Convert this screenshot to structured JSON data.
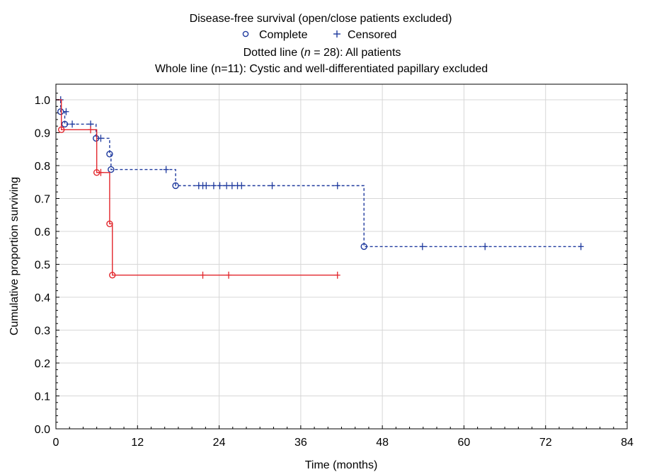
{
  "chart_data": {
    "type": "line",
    "title": "Disease-free  survival (open/close patients excluded)",
    "legend": {
      "placement": "top",
      "complete_label": "Complete",
      "censored_label": "Censored",
      "complete_marker": "circle",
      "censored_marker": "plus",
      "marker_color": "#1f3a9e"
    },
    "subtitle_pre": "Dotted line (",
    "subtitle_n": "n",
    "subtitle_post": " = 28): All patients",
    "subtitle2": "Whole line (n=11): Cystic and well-differentiated papillary excluded",
    "xlabel": "Time (months)",
    "ylabel": "Cumulative proportion surviving",
    "xlim": [
      0,
      84
    ],
    "ylim": [
      0,
      1.05
    ],
    "xticks": [
      0,
      12,
      24,
      36,
      48,
      60,
      72,
      84
    ],
    "yticks": [
      0.0,
      0.1,
      0.2,
      0.3,
      0.4,
      0.5,
      0.6,
      0.7,
      0.8,
      0.9,
      1.0
    ],
    "ytick_labels": [
      "0.0",
      "0.1",
      "0.2",
      "0.3",
      "0.4",
      "0.5",
      "0.6",
      "0.7",
      "0.8",
      "0.9",
      "1.0"
    ],
    "grid": true,
    "series": [
      {
        "style": "dotted",
        "color": "#1f3a9e",
        "steps": [
          [
            0,
            1.0
          ],
          [
            0.7,
            0.964
          ],
          [
            1.3,
            0.926
          ],
          [
            5.9,
            0.883
          ],
          [
            7.9,
            0.835
          ],
          [
            8.1,
            0.788
          ],
          [
            17.6,
            0.739
          ],
          [
            45.3,
            0.554
          ],
          [
            77.2,
            0.554
          ]
        ],
        "complete": [
          [
            0.7,
            0.964
          ],
          [
            1.3,
            0.926
          ],
          [
            5.9,
            0.883
          ],
          [
            7.9,
            0.835
          ],
          [
            8.1,
            0.788
          ],
          [
            17.6,
            0.739
          ],
          [
            45.3,
            0.554
          ]
        ],
        "censored": [
          [
            0.7,
            1.0
          ],
          [
            1.5,
            0.964
          ],
          [
            2.4,
            0.926
          ],
          [
            5.1,
            0.926
          ],
          [
            6.6,
            0.883
          ],
          [
            16.2,
            0.788
          ],
          [
            21.0,
            0.739
          ],
          [
            21.6,
            0.739
          ],
          [
            22.1,
            0.739
          ],
          [
            23.2,
            0.739
          ],
          [
            24.1,
            0.739
          ],
          [
            25.1,
            0.739
          ],
          [
            25.9,
            0.739
          ],
          [
            26.7,
            0.739
          ],
          [
            27.3,
            0.739
          ],
          [
            31.8,
            0.739
          ],
          [
            41.4,
            0.739
          ],
          [
            53.9,
            0.554
          ],
          [
            63.1,
            0.554
          ],
          [
            77.2,
            0.554
          ]
        ]
      },
      {
        "style": "solid",
        "color": "#e2262c",
        "steps": [
          [
            0,
            1.0
          ],
          [
            0.8,
            0.909
          ],
          [
            6.0,
            0.779
          ],
          [
            7.9,
            0.623
          ],
          [
            8.3,
            0.467
          ],
          [
            41.4,
            0.467
          ]
        ],
        "complete": [
          [
            0.8,
            0.909
          ],
          [
            6.0,
            0.779
          ],
          [
            7.9,
            0.623
          ],
          [
            8.3,
            0.467
          ]
        ],
        "censored": [
          [
            5.1,
            0.909
          ],
          [
            6.6,
            0.779
          ],
          [
            21.6,
            0.467
          ],
          [
            25.4,
            0.467
          ],
          [
            41.4,
            0.467
          ]
        ]
      }
    ]
  }
}
